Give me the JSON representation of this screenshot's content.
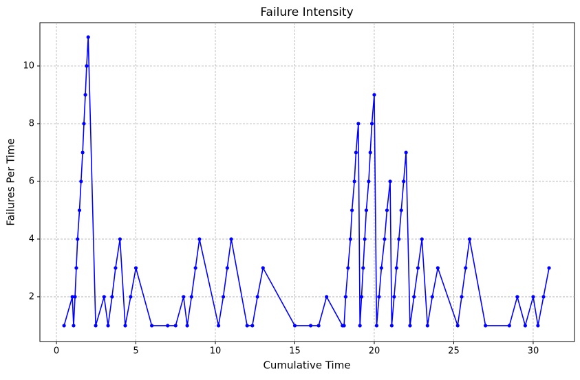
{
  "chart_data": {
    "type": "line",
    "title": "Failure Intensity",
    "x_label": "Cumulative Time",
    "y_label": "Failures Per Time",
    "x": [
      0.48,
      1.0,
      1.08,
      1.17,
      1.25,
      1.33,
      1.45,
      1.55,
      1.65,
      1.73,
      1.82,
      1.9,
      2.0,
      2.47,
      3.0,
      3.25,
      3.5,
      3.72,
      4.0,
      4.33,
      4.67,
      5.0,
      6.0,
      7.0,
      7.5,
      8.0,
      8.23,
      8.5,
      8.75,
      9.0,
      10.2,
      10.5,
      10.75,
      11.0,
      12.0,
      12.33,
      12.65,
      13.0,
      15.0,
      16.0,
      16.5,
      17.0,
      18.0,
      18.1,
      18.2,
      18.35,
      18.5,
      18.6,
      18.75,
      18.85,
      19.0,
      19.1,
      19.2,
      19.3,
      19.4,
      19.5,
      19.65,
      19.75,
      19.85,
      20.0,
      20.15,
      20.3,
      20.45,
      20.65,
      20.8,
      21.0,
      21.1,
      21.25,
      21.4,
      21.55,
      21.7,
      21.85,
      22.0,
      22.25,
      22.5,
      22.75,
      23.0,
      23.35,
      23.65,
      24.0,
      25.25,
      25.5,
      25.75,
      26.0,
      27.0,
      28.5,
      29.0,
      29.5,
      30.0,
      30.3,
      30.65,
      31.0
    ],
    "values": [
      1,
      2,
      1,
      2,
      3,
      4,
      5,
      6,
      7,
      8,
      9,
      10,
      11,
      1,
      2,
      1,
      2,
      3,
      4,
      1,
      2,
      3,
      1,
      1,
      1,
      2,
      1,
      2,
      3,
      4,
      1,
      2,
      3,
      4,
      1,
      1,
      2,
      3,
      1,
      1,
      1,
      2,
      1,
      1,
      2,
      3,
      4,
      5,
      6,
      7,
      8,
      1,
      2,
      3,
      4,
      5,
      6,
      7,
      8,
      9,
      1,
      2,
      3,
      4,
      5,
      6,
      1,
      2,
      3,
      4,
      5,
      6,
      7,
      1,
      2,
      3,
      4,
      1,
      2,
      3,
      1,
      2,
      3,
      4,
      1,
      1,
      2,
      1,
      2,
      1,
      2,
      3
    ],
    "color": "#0000ff",
    "xlim": [
      -1.04,
      32.6
    ],
    "ylim": [
      0.45,
      11.5
    ],
    "xticks": [
      0,
      5,
      10,
      15,
      20,
      25,
      30
    ],
    "yticks": [
      2,
      4,
      6,
      8,
      10
    ],
    "grid": true
  }
}
